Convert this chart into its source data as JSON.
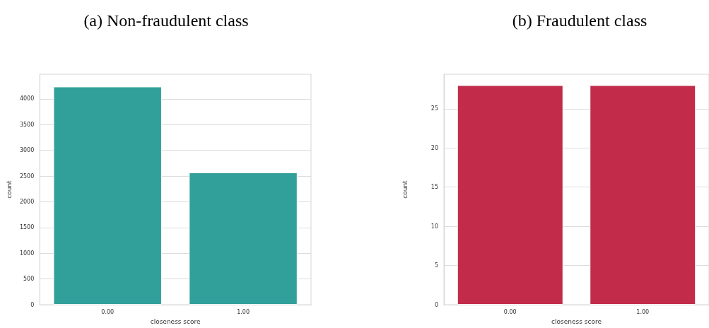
{
  "chart_data": [
    {
      "type": "bar",
      "title": "(a) Non-fraudulent class",
      "xlabel": "closeness score",
      "ylabel": "count",
      "categories": [
        "0.00",
        "1.00"
      ],
      "values": [
        4240,
        2570
      ],
      "color": "#31a09a",
      "ylim": [
        0,
        4480
      ],
      "yticks": [
        0,
        500,
        1000,
        1500,
        2000,
        2500,
        3000,
        3500,
        4000
      ],
      "grid": "y"
    },
    {
      "type": "bar",
      "title": "(b) Fraudulent class",
      "xlabel": "closeness score",
      "ylabel": "count",
      "categories": [
        "0.00",
        "1.00"
      ],
      "values": [
        28,
        28
      ],
      "color": "#c22b4a",
      "ylim": [
        0,
        29.4
      ],
      "yticks": [
        0,
        5,
        10,
        15,
        20,
        25
      ],
      "grid": "y"
    }
  ]
}
